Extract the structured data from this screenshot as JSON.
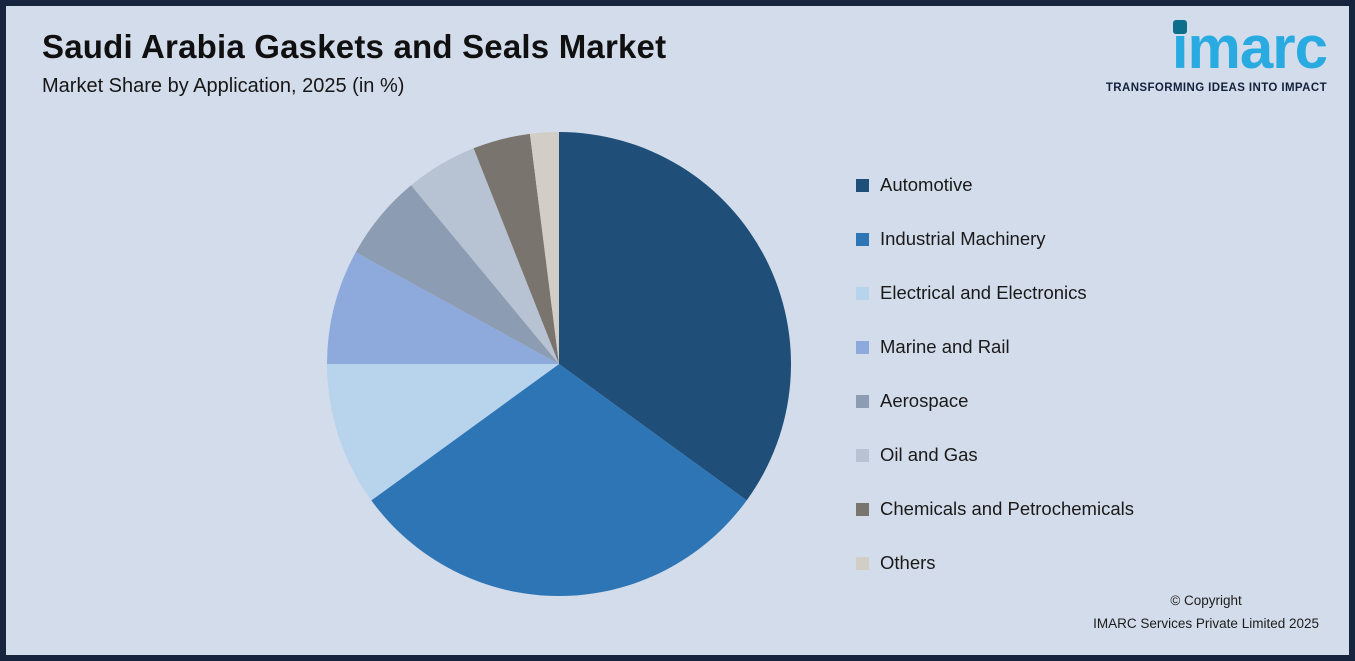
{
  "header": {
    "title": "Saudi Arabia Gaskets and Seals Market",
    "subtitle": "Market Share by Application, 2025 (in %)"
  },
  "logo": {
    "name": "imarc",
    "tagline": "TRANSFORMING IDEAS INTO IMPACT"
  },
  "chart_data": {
    "type": "pie",
    "title": "Saudi Arabia Gaskets and Seals Market",
    "subtitle": "Market Share by Application, 2025 (in %)",
    "unit": "%",
    "categories": [
      "Automotive",
      "Industrial Machinery",
      "Electrical and Electronics",
      "Marine and Rail",
      "Aerospace",
      "Oil and Gas",
      "Chemicals and Petrochemicals",
      "Others"
    ],
    "values": [
      35,
      30,
      10,
      8,
      6,
      5,
      4,
      2
    ],
    "colors": [
      "#1f4e79",
      "#2e75b6",
      "#b8d3ec",
      "#8ea9dc",
      "#8b9cb3",
      "#b7c3d2",
      "#7a746e",
      "#d2cec6"
    ],
    "start_angle_deg": -90,
    "direction": "clockwise",
    "legend_position": "right",
    "data_labels": false
  },
  "footer": {
    "copyright_line1": "© Copyright",
    "copyright_line2": "IMARC Services Private Limited 2025"
  },
  "colors": {
    "background": "#d3dcea",
    "border": "#16243d",
    "title-text": "#101010",
    "logo-blue": "#29abe2",
    "logo-dark": "#14213d",
    "legend-text": "#1a1a1a"
  }
}
